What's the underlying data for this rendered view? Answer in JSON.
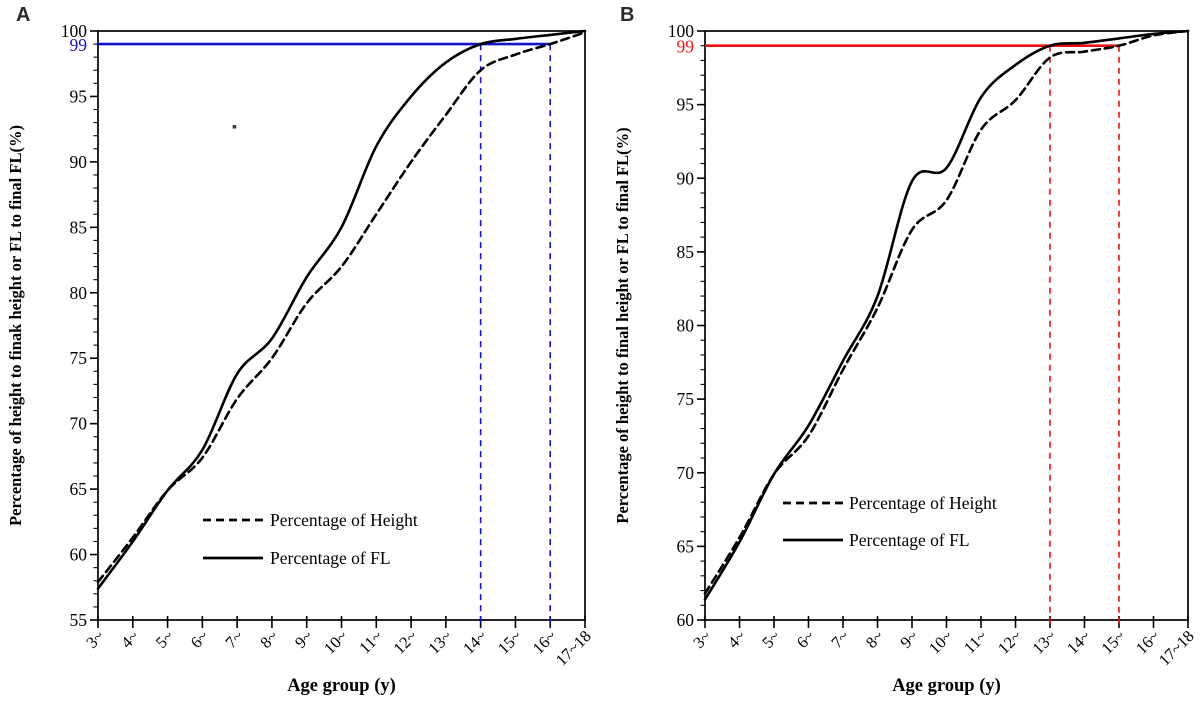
{
  "figure": {
    "panel_letters": [
      "A",
      "B"
    ]
  },
  "chart_data": [
    {
      "id": "A",
      "type": "line",
      "panel_label": "A",
      "xlabel": "Age group (y)",
      "ylabel": "Percentage of height to finak height or FL to final FL(%)",
      "categories": [
        "3~",
        "4~",
        "5~",
        "6~",
        "7~",
        "8~",
        "9~",
        "10~",
        "11~",
        "12~",
        "13~",
        "14~",
        "15~",
        "16~",
        "17~18"
      ],
      "ylim": [
        55,
        100
      ],
      "ytick_step": 5,
      "yminor_step": 1,
      "ytick_labels": [
        "55",
        "60",
        "65",
        "70",
        "75",
        "80",
        "85",
        "90",
        "95",
        "100"
      ],
      "grid": false,
      "series": [
        {
          "name": "Percentage of Height",
          "line_style": "dashed",
          "color": "#000000",
          "values": [
            57.9,
            61.3,
            64.9,
            67.4,
            71.9,
            75.0,
            79.2,
            82.0,
            86.0,
            90.0,
            93.6,
            97.0,
            98.2,
            99.0,
            99.9
          ]
        },
        {
          "name": "Percentage of FL",
          "line_style": "solid",
          "color": "#000000",
          "values": [
            57.4,
            61.0,
            64.9,
            68.0,
            73.8,
            76.5,
            81.2,
            85.0,
            91.2,
            95.0,
            97.6,
            99.0,
            99.4,
            99.7,
            100.0
          ]
        }
      ],
      "annotations": {
        "color": "#1414cc",
        "hline_value": 99,
        "hline_label": "99",
        "vline_categories": [
          "14~",
          "16~"
        ]
      },
      "stray_dot": {
        "category": "7~",
        "value": 92.7
      },
      "legend": {
        "entries": [
          "Percentage of Height",
          "Percentage of FL"
        ],
        "position": "lower-center"
      }
    },
    {
      "id": "B",
      "type": "line",
      "panel_label": "B",
      "xlabel": "Age group (y)",
      "ylabel": "Percentage of height to final height or FL to final FL(%)",
      "categories": [
        "3~",
        "4~",
        "5~",
        "6~",
        "7~",
        "8~",
        "9~",
        "10~",
        "11~",
        "12~",
        "13~",
        "14~",
        "15~",
        "16~",
        "17~18"
      ],
      "ylim": [
        60,
        100
      ],
      "ytick_step": 5,
      "yminor_step": 1,
      "ytick_labels": [
        "60",
        "65",
        "70",
        "75",
        "80",
        "85",
        "90",
        "95",
        "100"
      ],
      "grid": false,
      "series": [
        {
          "name": "Percentage of Height",
          "line_style": "dashed",
          "color": "#000000",
          "values": [
            61.8,
            65.6,
            69.9,
            72.5,
            77.0,
            81.2,
            86.5,
            88.5,
            93.3,
            95.3,
            98.2,
            98.6,
            99.0,
            99.7,
            100.0
          ]
        },
        {
          "name": "Percentage of FL",
          "line_style": "solid",
          "color": "#000000",
          "values": [
            61.4,
            65.3,
            69.9,
            73.2,
            77.6,
            82.0,
            89.8,
            90.7,
            95.5,
            97.7,
            99.0,
            99.2,
            99.5,
            99.8,
            100.0
          ]
        }
      ],
      "annotations": {
        "color": "#ee1111",
        "hline_value": 99,
        "hline_label": "99",
        "vline_categories": [
          "13~",
          "15~"
        ]
      },
      "legend": {
        "entries": [
          "Percentage of Height",
          "Percentage of FL"
        ],
        "position": "lower-center"
      }
    }
  ]
}
